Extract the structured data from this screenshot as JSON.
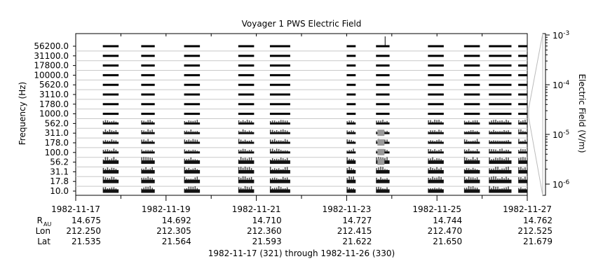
{
  "chart_data": {
    "type": "heatmap",
    "title": "Voyager 1 PWS Electric Field",
    "ylabel": "Frequency (Hz)",
    "colorbar_label": "Electric Field (V/m)",
    "channels": [
      "10.0",
      "17.8",
      "31.1",
      "56.2",
      "100.0",
      "178.0",
      "311.0",
      "562.0",
      "1000.0",
      "1780.0",
      "3110.0",
      "5620.0",
      "10000.0",
      "17800.0",
      "31100.0",
      "56200.0"
    ],
    "x_range_days": [
      "1982-11-17",
      "1982-11-27"
    ],
    "x_tick_labels": [
      "1982-11-17",
      "1982-11-19",
      "1982-11-21",
      "1982-11-23",
      "1982-11-25",
      "1982-11-27"
    ],
    "colorbar_ticks": [
      {
        "base": "10",
        "exp": "-3"
      },
      {
        "base": "10",
        "exp": "-4"
      },
      {
        "base": "10",
        "exp": "-5"
      },
      {
        "base": "10",
        "exp": "-6"
      }
    ],
    "colorbar_range": [
      "1e-6",
      "1e-3"
    ],
    "data_segments_days": [
      [
        0.6,
        0.95
      ],
      [
        1.45,
        1.75
      ],
      [
        2.4,
        2.75
      ],
      [
        3.6,
        3.95
      ],
      [
        4.3,
        4.75
      ],
      [
        6.0,
        6.2
      ],
      [
        6.65,
        6.95
      ],
      [
        7.8,
        8.15
      ],
      [
        8.6,
        8.95
      ],
      [
        9.15,
        9.65
      ],
      [
        9.8,
        10.0
      ]
    ],
    "ephemeris": {
      "rows": [
        {
          "label": "R",
          "sub": "AU",
          "values": [
            "14.675",
            "14.692",
            "14.710",
            "14.727",
            "14.744",
            "14.762"
          ]
        },
        {
          "label": "Lon",
          "values": [
            "212.250",
            "212.305",
            "212.360",
            "212.415",
            "212.470",
            "212.525"
          ]
        },
        {
          "label": "Lat",
          "values": [
            "21.535",
            "21.564",
            "21.593",
            "21.622",
            "21.650",
            "21.679"
          ]
        }
      ]
    },
    "date_range_caption": "1982-11-17 (321) through 1982-11-26 (330)"
  }
}
